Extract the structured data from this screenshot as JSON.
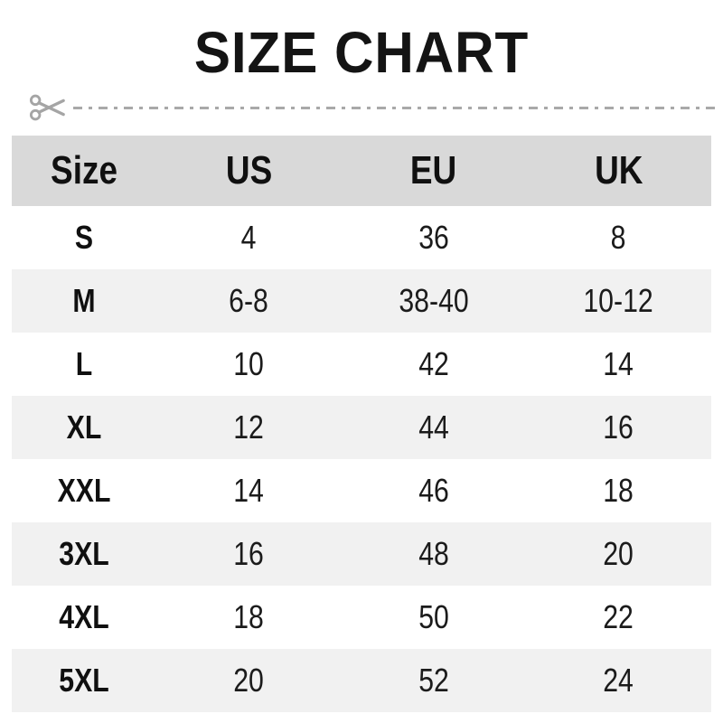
{
  "title": "SIZE CHART",
  "colors": {
    "header_bg": "#d9d9d9",
    "row_bg": "#ffffff",
    "row_alt_bg": "#f1f1f1",
    "text": "#1b1b1b",
    "cut_line": "#a9a9a9"
  },
  "icons": {
    "scissors": "scissors-icon"
  },
  "chart_data": {
    "type": "table",
    "title": "SIZE CHART",
    "columns": [
      "Size",
      "US",
      "EU",
      "UK"
    ],
    "rows": [
      [
        "S",
        "4",
        "36",
        "8"
      ],
      [
        "M",
        "6-8",
        "38-40",
        "10-12"
      ],
      [
        "L",
        "10",
        "42",
        "14"
      ],
      [
        "XL",
        "12",
        "44",
        "16"
      ],
      [
        "XXL",
        "14",
        "46",
        "18"
      ],
      [
        "3XL",
        "16",
        "48",
        "20"
      ],
      [
        "4XL",
        "18",
        "50",
        "22"
      ],
      [
        "5XL",
        "20",
        "52",
        "24"
      ]
    ],
    "layout_hints": {
      "header_background": "#d9d9d9",
      "alternating_rows": true,
      "grid_lines": false
    }
  }
}
